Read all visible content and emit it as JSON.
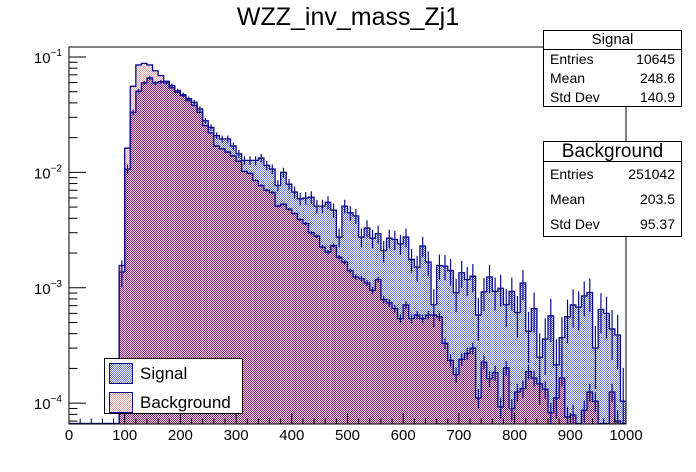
{
  "chart_data": {
    "type": "bar",
    "subtype": "histogram-step-overlay",
    "title": "WZZ_inv_mass_Zj1",
    "xlabel": "",
    "ylabel": "",
    "x_range": [
      0,
      1000
    ],
    "ylim": [
      6.6e-05,
      0.122
    ],
    "yscale": "log",
    "bin_width": 10,
    "grid": false,
    "x_ticks": [
      "0",
      "100",
      "200",
      "300",
      "400",
      "500",
      "600",
      "700",
      "800",
      "900",
      "1000"
    ],
    "y_ticks": [
      {
        "base": "10",
        "exp": "−1",
        "value": 0.1
      },
      {
        "base": "10",
        "exp": "−2",
        "value": 0.01
      },
      {
        "base": "10",
        "exp": "−3",
        "value": 0.001
      },
      {
        "base": "10",
        "exp": "−4",
        "value": 0.0001
      }
    ],
    "series": [
      {
        "name": "Signal",
        "line_color": "#0a0a8c",
        "fill_color": "#6670dc",
        "values": [
          0,
          0,
          0,
          0,
          0,
          0,
          0,
          0,
          0,
          0.00137,
          0.0107,
          0.0332,
          0.0505,
          0.0596,
          0.0658,
          0.0596,
          0.061,
          0.0596,
          0.0565,
          0.051,
          0.047,
          0.0435,
          0.0405,
          0.0355,
          0.028,
          0.0245,
          0.0208,
          0.0195,
          0.0195,
          0.0169,
          0.0145,
          0.0127,
          0.0127,
          0.0127,
          0.0133,
          0.0115,
          0.0107,
          0.0077,
          0.01,
          0.0079,
          0.00675,
          0.0059,
          0.006,
          0.0061,
          0.0051,
          0.0051,
          0.0055,
          0.0047,
          0.00275,
          0.0051,
          0.00446,
          0.0042,
          0.00275,
          0.00329,
          0.00269,
          0.00294,
          0.0021,
          0.00269,
          0.00262,
          0.0024,
          0.00275,
          0.00176,
          0.00151,
          0.0023,
          0.00167,
          0.000713,
          0.00156,
          0.00154,
          0.00141,
          0.000906,
          0.00135,
          0.00118,
          0.00126,
          0.00058,
          0.00092,
          0.00124,
          0.00093,
          0.00099,
          0.000713,
          0.00093,
          0.00061,
          0.0011,
          0.00042,
          0.00066,
          0.00025,
          0.00036,
          0.00057,
          0.000215,
          0.00037,
          0.00056,
          0.00071,
          0.00068,
          0.00085,
          0.00091,
          0.0003,
          0.00065,
          0.0006,
          0.00044,
          0.00039,
          0.000104
        ]
      },
      {
        "name": "Background",
        "line_color": "#0a0a8c",
        "fill_color": "#f0a0a4",
        "values": [
          0,
          0,
          0,
          0,
          0,
          0,
          0,
          0,
          0,
          0.00156,
          0.0162,
          0.0557,
          0.0853,
          0.088,
          0.0853,
          0.076,
          0.0689,
          0.0616,
          0.054,
          0.0494,
          0.0463,
          0.0419,
          0.038,
          0.0332,
          0.0254,
          0.022,
          0.0169,
          0.016,
          0.015,
          0.0139,
          0.0125,
          0.0102,
          0.0098,
          0.0085,
          0.0077,
          0.007,
          0.0067,
          0.0051,
          0.0053,
          0.0048,
          0.0044,
          0.0039,
          0.0036,
          0.003,
          0.0028,
          0.00225,
          0.00204,
          0.00232,
          0.00184,
          0.00167,
          0.00141,
          0.00124,
          0.0012,
          0.0011,
          0.00095,
          0.00118,
          0.00079,
          0.00074,
          0.00066,
          0.00054,
          0.00071,
          0.00054,
          0.00058,
          0.00054,
          0.00058,
          0.00058,
          0.00056,
          0.00033,
          0.000235,
          0.000177,
          0.00024,
          0.00027,
          0.0003,
          0.000111,
          0.000227,
          0.000163,
          0.000184,
          9.27e-05,
          0.000202,
          8.95e-05,
          0.000125,
          0.000134,
          0.000188,
          0.000165,
          0.000147,
          0.000132,
          8.27e-05,
          0.000111,
          0.000165,
          7.6e-05,
          7.9e-05,
          0,
          8.67e-05,
          0.000125,
          0.000104,
          0,
          0,
          0.000125,
          7e-05,
          0
        ]
      }
    ],
    "overlap_fill_color": "#7d2672",
    "legend": {
      "position": "bottom-left",
      "entries": [
        {
          "label": "Signal"
        },
        {
          "label": "Background"
        }
      ]
    },
    "stats": {
      "labels": {
        "entries": "Entries",
        "mean": "Mean",
        "std_dev": "Std Dev"
      },
      "boxes": [
        {
          "name": "Signal",
          "entries": "10645",
          "mean": "248.6",
          "std_dev": "140.9"
        },
        {
          "name": "Background",
          "entries": "251042",
          "mean": "203.5",
          "std_dev": "95.37"
        }
      ],
      "position": "top-right"
    }
  }
}
